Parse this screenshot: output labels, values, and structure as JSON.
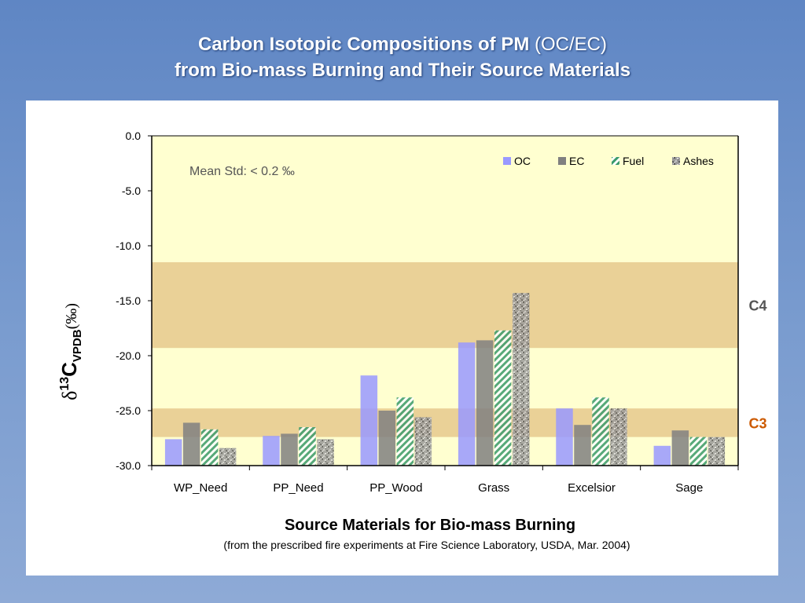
{
  "slide": {
    "title_line1_bold": "Carbon Isotopic Compositions of PM",
    "title_line1_normal": "(OC/EC)",
    "title_line2": "from Bio-mass Burning and Their Source Materials"
  },
  "chart_data": {
    "type": "bar",
    "title": "",
    "xlabel": "Source Materials for Bio-mass Burning",
    "xlabel_sub": "(from the prescribed fire experiments at Fire Science Laboratory, USDA, Mar. 2004)",
    "ylabel": {
      "delta": "δ",
      "sup": "13",
      "main": "C",
      "sub": "VPDB",
      "unit": "(‰)"
    },
    "ylim": [
      -30,
      0
    ],
    "yticks": [
      "0.0",
      "-5.0",
      "-10.0",
      "-15.0",
      "-20.0",
      "-25.0",
      "-30.0"
    ],
    "categories": [
      "WP_Need",
      "PP_Need",
      "PP_Wood",
      "Grass",
      "Excelsior",
      "Sage"
    ],
    "series": [
      {
        "name": "OC",
        "color": "#9999ff",
        "pattern": "solid",
        "values": [
          -27.6,
          -27.3,
          -21.8,
          -18.8,
          -24.8,
          -28.2
        ]
      },
      {
        "name": "EC",
        "color": "#808080",
        "pattern": "solid",
        "values": [
          -26.1,
          -27.1,
          -25.0,
          -18.6,
          -26.3,
          -26.8
        ]
      },
      {
        "name": "Fuel",
        "color": "#3a9a6a",
        "pattern": "diagonal-stripes",
        "values": [
          -26.7,
          -26.5,
          -23.8,
          -17.7,
          -23.8,
          -27.4
        ]
      },
      {
        "name": "Ashes",
        "color": "#8a8a8a",
        "pattern": "granite",
        "values": [
          -28.4,
          -27.6,
          -25.6,
          -14.3,
          -24.8,
          -27.4
        ]
      }
    ],
    "bands": [
      {
        "label": "C4",
        "range": [
          -19.3,
          -11.5
        ],
        "label_color": "#555555"
      },
      {
        "label": "C3",
        "range": [
          -27.4,
          -24.8
        ],
        "label_color": "#cc5a00"
      }
    ],
    "annotation": "Mean Std: < 0.2 ‰",
    "grid": false,
    "legend_position": "top-right",
    "plot_background": "#ffffd0"
  }
}
